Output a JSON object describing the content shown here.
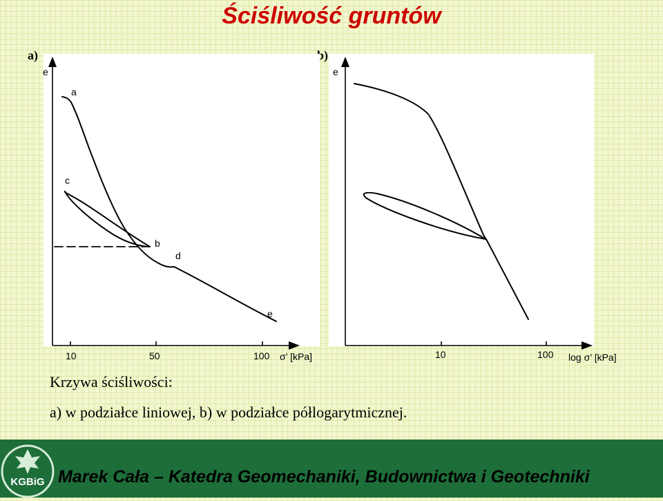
{
  "title": "Ściśliwość gruntów",
  "panels": {
    "a": {
      "label": "a)",
      "axis_y_label": "e",
      "axis_x_label": "σ’ [kPa]",
      "x_ticks": [
        "10",
        "50",
        "100"
      ],
      "point_labels": [
        "a",
        "b",
        "c",
        "d",
        "e"
      ]
    },
    "b": {
      "label": "b)",
      "axis_y_label": "e",
      "axis_x_label": "log σ’ [kPa]",
      "x_ticks": [
        "10",
        "100"
      ]
    }
  },
  "caption": {
    "line1": "Krzywa ściśliwości:",
    "line2": "a)  w podziałce liniowej,  b)  w podziałce półlogarytmicznej."
  },
  "footer": {
    "text": "Marek Cała – Katedra Geomechaniki, Budownictwa i Geotechniki",
    "logo_text": "KGBiG"
  },
  "colors": {
    "title": "#cc0000",
    "footer_bg": "#1e6e3a",
    "background": "#f3f7cf",
    "grid": "#dfe8a6"
  }
}
